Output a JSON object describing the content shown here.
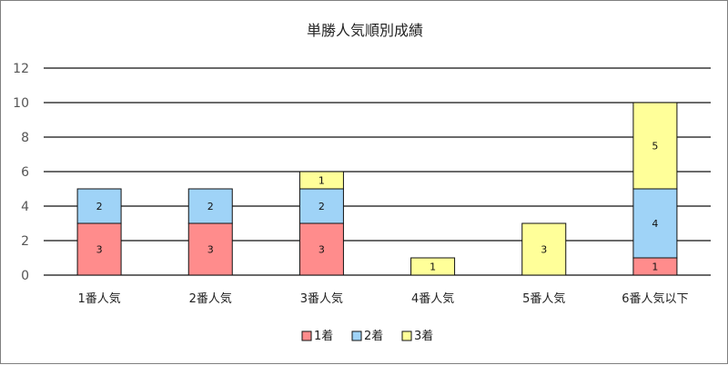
{
  "chart_data": {
    "type": "bar",
    "stacked": true,
    "title": "単勝人気順別成績",
    "xlabel": "",
    "ylabel": "",
    "ylim": [
      0,
      12
    ],
    "yticks": [
      0,
      2,
      4,
      6,
      8,
      10,
      12
    ],
    "grid": true,
    "legend_position": "bottom",
    "categories": [
      "1番人気",
      "2番人気",
      "3番人気",
      "4番人気",
      "5番人気",
      "6番人気以下"
    ],
    "series": [
      {
        "name": "1着",
        "color": "#ff8c8c",
        "values": [
          3,
          3,
          3,
          0,
          0,
          1
        ]
      },
      {
        "name": "2着",
        "color": "#9fd3f7",
        "values": [
          2,
          2,
          2,
          0,
          0,
          4
        ]
      },
      {
        "name": "3着",
        "color": "#ffff99",
        "values": [
          0,
          0,
          1,
          1,
          3,
          5
        ]
      }
    ]
  }
}
